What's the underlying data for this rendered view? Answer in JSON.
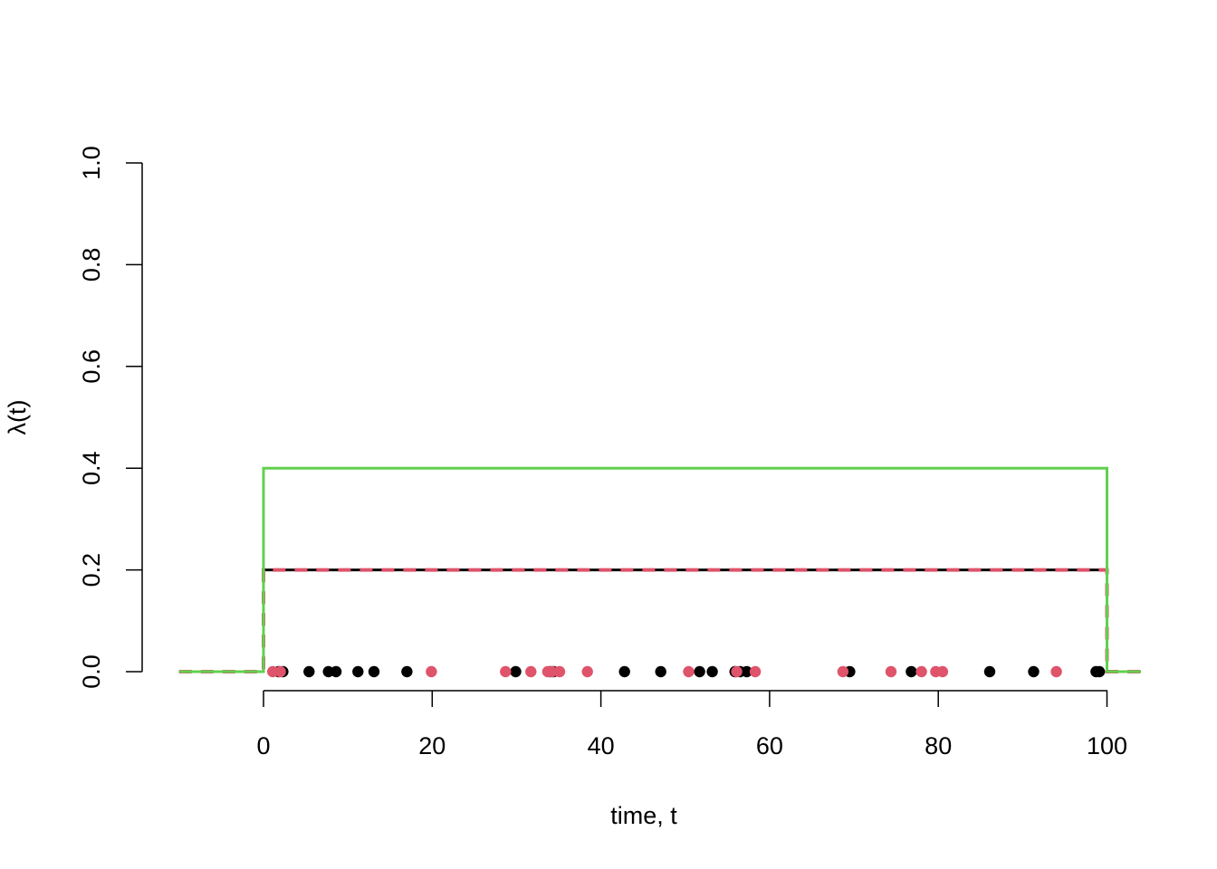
{
  "chart_data": {
    "type": "line",
    "title": "",
    "xlabel": "time, t",
    "ylabel": "λ(t)",
    "xlim": [
      -10,
      104
    ],
    "ylim": [
      0,
      1
    ],
    "grid": false,
    "x_ticks": [
      "0",
      "20",
      "40",
      "60",
      "80",
      "100"
    ],
    "y_ticks": [
      "0.0",
      "0.2",
      "0.4",
      "0.6",
      "0.8",
      "1.0"
    ],
    "colors": {
      "black": "#000000",
      "red": "#DF536B",
      "green": "#61D04F"
    },
    "series": [
      {
        "color": "#000000",
        "style": "solid",
        "x": [
          -10,
          0,
          0,
          100,
          100,
          104
        ],
        "y": [
          0,
          0,
          0.2,
          0.2,
          0,
          0
        ]
      },
      {
        "color": "#DF536B",
        "style": "dashed",
        "x": [
          -10,
          0,
          0,
          100,
          100,
          104
        ],
        "y": [
          0,
          0,
          0.2,
          0.2,
          0,
          0
        ]
      },
      {
        "color": "#61D04F",
        "style": "solid",
        "x": [
          -10,
          0,
          0,
          100,
          100,
          104
        ],
        "y": [
          0,
          0,
          0.4,
          0.4,
          0,
          0
        ]
      }
    ],
    "points": [
      {
        "color": "#000000",
        "x": [
          1.8,
          2.3,
          5.4,
          7.7,
          8.6,
          11.2,
          13.1,
          17.0,
          29.9,
          34.0,
          34.4,
          42.8,
          47.1,
          51.7,
          53.2,
          55.9,
          56.5,
          57.3,
          69.5,
          76.8,
          86.1,
          91.3,
          98.7,
          99.1
        ],
        "y": [
          0,
          0,
          0,
          0,
          0,
          0,
          0,
          0,
          0,
          0,
          0,
          0,
          0,
          0,
          0,
          0,
          0,
          0,
          0,
          0,
          0,
          0,
          0,
          0
        ]
      },
      {
        "color": "#DF536B",
        "x": [
          1.1,
          2.0,
          19.9,
          28.7,
          31.7,
          33.7,
          34.2,
          35.1,
          38.4,
          50.4,
          56.1,
          58.3,
          68.7,
          74.4,
          78.0,
          79.7,
          80.5,
          94.0
        ],
        "y": [
          0,
          0,
          0,
          0,
          0,
          0,
          0,
          0,
          0,
          0,
          0,
          0,
          0,
          0,
          0,
          0,
          0,
          0
        ]
      }
    ]
  }
}
